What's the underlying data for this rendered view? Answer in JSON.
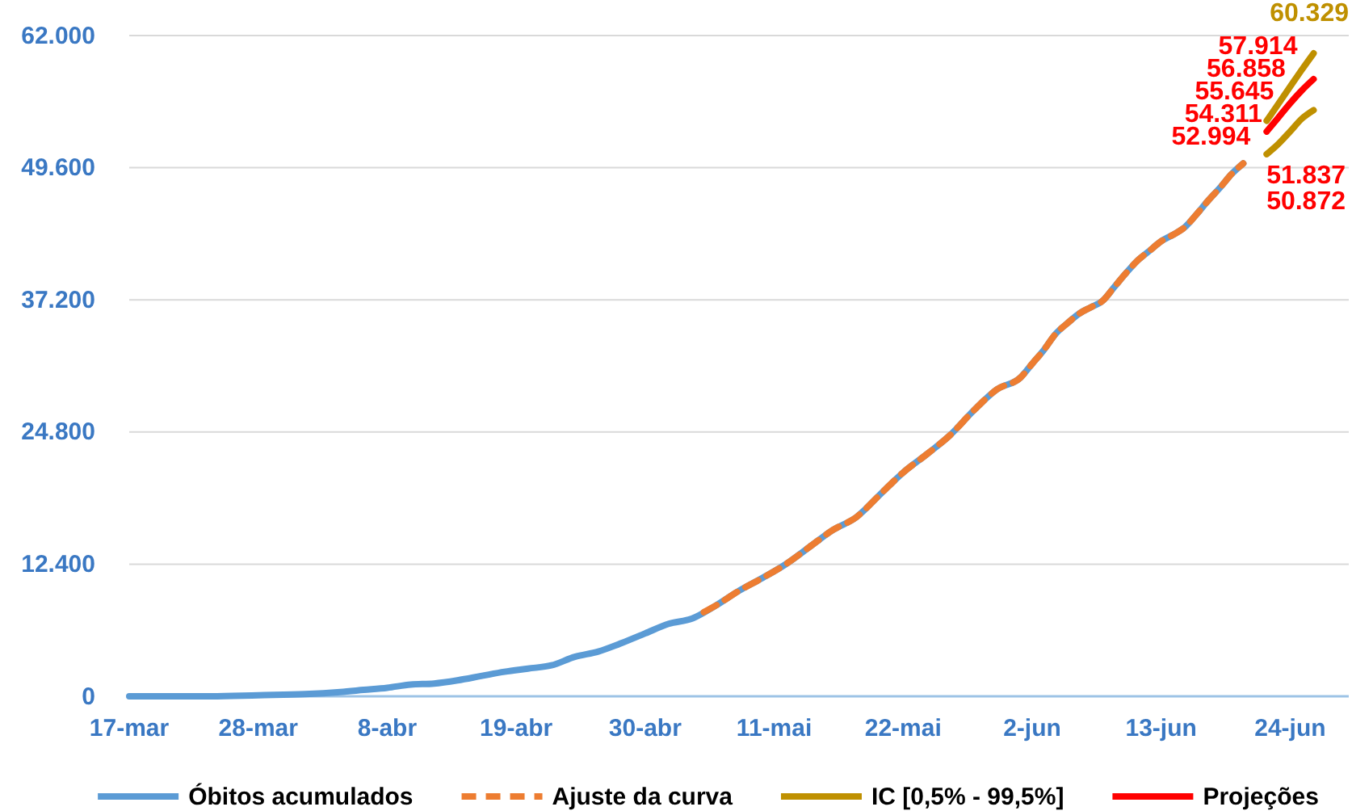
{
  "chart_data": {
    "type": "line",
    "xlim": [
      "--03-17",
      "--06-29"
    ],
    "xticks": [
      {
        "value": "--03-17",
        "label": "17-mar"
      },
      {
        "value": "--03-28",
        "label": "28-mar"
      },
      {
        "value": "--04-08",
        "label": "8-abr"
      },
      {
        "value": "--04-19",
        "label": "19-abr"
      },
      {
        "value": "--04-30",
        "label": "30-abr"
      },
      {
        "value": "--05-11",
        "label": "11-mai"
      },
      {
        "value": "--05-22",
        "label": "22-mai"
      },
      {
        "value": "--06-02",
        "label": "2-jun"
      },
      {
        "value": "--06-13",
        "label": "13-jun"
      },
      {
        "value": "--06-24",
        "label": "24-jun"
      }
    ],
    "ylim": [
      0,
      62000
    ],
    "yticks": [
      {
        "value": 0,
        "label": "0"
      },
      {
        "value": 12400,
        "label": "12.400"
      },
      {
        "value": 24800,
        "label": "24.800"
      },
      {
        "value": 37200,
        "label": "37.200"
      },
      {
        "value": 49600,
        "label": "49.600"
      },
      {
        "value": 62000,
        "label": "62.000"
      }
    ],
    "grid": "y",
    "legend": "bottom",
    "marker": "none",
    "series": [
      {
        "name": "Óbitos acumulados",
        "color": "#5b9bd5",
        "line_style": "solid",
        "x": [
          "--03-17",
          "--03-20",
          "--03-24",
          "--03-28",
          "--04-01",
          "--04-04",
          "--04-06",
          "--04-08",
          "--04-10",
          "--04-12",
          "--04-14",
          "--04-16",
          "--04-18",
          "--04-20",
          "--04-22",
          "--04-24",
          "--04-26",
          "--04-28",
          "--04-30",
          "--05-02",
          "--05-04",
          "--05-06",
          "--05-08",
          "--05-10",
          "--05-12",
          "--05-14",
          "--05-16",
          "--05-18",
          "--05-20",
          "--05-22",
          "--05-24",
          "--05-26",
          "--05-28",
          "--05-30",
          "--06-01",
          "--06-02",
          "--06-03",
          "--06-04",
          "--06-05",
          "--06-06",
          "--06-07",
          "--06-08",
          "--06-09",
          "--06-10",
          "--06-11",
          "--06-12",
          "--06-13",
          "--06-14",
          "--06-15",
          "--06-16",
          "--06-17",
          "--06-18",
          "--06-19",
          "--06-20"
        ],
        "values": [
          0,
          0,
          0,
          100,
          200,
          400,
          600,
          800,
          1100,
          1200,
          1500,
          1900,
          2300,
          2600,
          2900,
          3700,
          4200,
          5000,
          5900,
          6800,
          7300,
          8500,
          9900,
          11100,
          12400,
          14000,
          15600,
          16800,
          18900,
          21000,
          22700,
          24500,
          26800,
          28800,
          29900,
          31200,
          32500,
          34000,
          35000,
          35900,
          36500,
          37100,
          38400,
          39700,
          40900,
          41800,
          42700,
          43300,
          44000,
          45200,
          46500,
          47700,
          49000,
          50000
        ]
      },
      {
        "name": "Ajuste da curva",
        "color": "#ed7d31",
        "line_style": "dashed",
        "x": [
          "--05-05",
          "--05-06",
          "--05-08",
          "--05-10",
          "--05-12",
          "--05-14",
          "--05-16",
          "--05-18",
          "--05-20",
          "--05-22",
          "--05-24",
          "--05-26",
          "--05-28",
          "--05-30",
          "--06-01",
          "--06-02",
          "--06-03",
          "--06-04",
          "--06-05",
          "--06-06",
          "--06-07",
          "--06-08",
          "--06-09",
          "--06-10",
          "--06-11",
          "--06-12",
          "--06-13",
          "--06-14",
          "--06-15",
          "--06-16",
          "--06-17",
          "--06-18",
          "--06-19",
          "--06-20"
        ],
        "values": [
          7900,
          8500,
          9900,
          11100,
          12400,
          14000,
          15600,
          16800,
          18900,
          21000,
          22700,
          24500,
          26800,
          28800,
          29900,
          31200,
          32500,
          34000,
          35000,
          35900,
          36500,
          37100,
          38400,
          39700,
          40900,
          41800,
          42700,
          43300,
          44000,
          45200,
          46500,
          47700,
          49000,
          50000
        ]
      },
      {
        "name": "IC [0,5% - 99,5%]",
        "color": "#bf9000",
        "line_style": "solid",
        "x": [
          "--06-22",
          "--06-23",
          "--06-24",
          "--06-25",
          "--06-26"
        ],
        "values": [
          54000,
          55600,
          57200,
          58800,
          60329
        ],
        "value_labels": [
          null,
          null,
          null,
          null,
          "60.329"
        ]
      },
      {
        "color": "#bf9000",
        "line_style": "solid",
        "x": [
          "--06-22",
          "--06-23",
          "--06-24",
          "--06-25",
          "--06-26"
        ],
        "values": [
          50872,
          51837,
          53000,
          54200,
          55000
        ],
        "value_labels": [
          "50.872",
          "51.837",
          null,
          null,
          null
        ]
      },
      {
        "name": "Projeções",
        "color": "#ff0000",
        "line_style": "solid",
        "x": [
          "--06-22",
          "--06-23",
          "--06-24",
          "--06-25",
          "--06-26"
        ],
        "values": [
          52994,
          54311,
          55645,
          56858,
          57914
        ],
        "value_labels": [
          "52.994",
          "54.311",
          "55.645",
          "56.858",
          "57.914"
        ]
      }
    ]
  }
}
